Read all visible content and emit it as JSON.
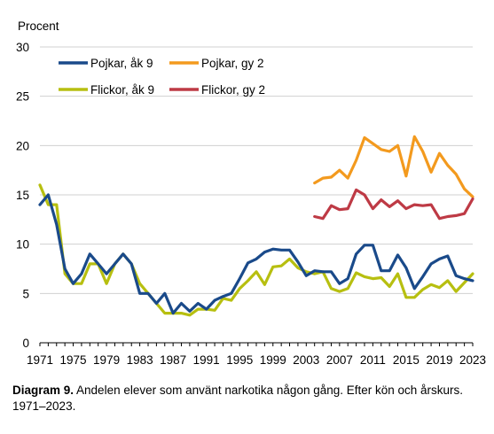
{
  "chart_data": {
    "type": "line",
    "ylabel": "Procent",
    "ylim": [
      0,
      30
    ],
    "yticks": [
      0,
      5,
      10,
      15,
      20,
      25,
      30
    ],
    "xlim": [
      1971,
      2023
    ],
    "xticks": [
      1971,
      1975,
      1979,
      1983,
      1987,
      1991,
      1995,
      1999,
      2003,
      2007,
      2011,
      2015,
      2019,
      2023
    ],
    "grid": true,
    "legend_position": "top-left, two columns",
    "series": [
      {
        "name": "Pojkar, åk 9",
        "color": "#1a4a8a",
        "x": [
          1971,
          1972,
          1973,
          1974,
          1975,
          1976,
          1977,
          1978,
          1979,
          1980,
          1981,
          1982,
          1983,
          1984,
          1985,
          1986,
          1987,
          1988,
          1989,
          1990,
          1991,
          1992,
          1993,
          1994,
          1995,
          1996,
          1997,
          1998,
          1999,
          2000,
          2001,
          2002,
          2003,
          2004,
          2005,
          2006,
          2007,
          2008,
          2009,
          2010,
          2011,
          2012,
          2013,
          2014,
          2015,
          2016,
          2017,
          2018,
          2019,
          2020,
          2021,
          2022,
          2023
        ],
        "values": [
          14,
          15,
          12,
          7.5,
          6,
          7,
          9,
          8,
          7,
          8,
          9,
          8,
          5,
          5,
          4,
          5,
          3,
          4,
          3.2,
          4,
          3.4,
          4.3,
          4.7,
          5,
          6.5,
          8.1,
          8.5,
          9.2,
          9.5,
          9.4,
          9.4,
          8.2,
          6.8,
          7.3,
          7.2,
          7.2,
          6,
          6.5,
          9,
          9.9,
          9.9,
          7.3,
          7.3,
          8.9,
          7.6,
          5.5,
          6.7,
          8,
          8.5,
          8.8,
          6.8,
          6.5,
          6.3
        ]
      },
      {
        "name": "Flickor, åk 9",
        "color": "#b7bf10",
        "x": [
          1971,
          1972,
          1973,
          1974,
          1975,
          1976,
          1977,
          1978,
          1979,
          1980,
          1981,
          1982,
          1983,
          1984,
          1985,
          1986,
          1987,
          1988,
          1989,
          1990,
          1991,
          1992,
          1993,
          1994,
          1995,
          1996,
          1997,
          1998,
          1999,
          2000,
          2001,
          2002,
          2003,
          2004,
          2005,
          2006,
          2007,
          2008,
          2009,
          2010,
          2011,
          2012,
          2013,
          2014,
          2015,
          2016,
          2017,
          2018,
          2019,
          2020,
          2021,
          2022,
          2023
        ],
        "values": [
          16,
          14,
          14,
          7,
          6,
          6,
          8,
          8,
          6,
          8,
          9,
          8,
          6,
          5,
          4,
          3,
          3,
          3,
          2.8,
          3.4,
          3.4,
          3.3,
          4.5,
          4.3,
          5.5,
          6.3,
          7.2,
          5.9,
          7.7,
          7.8,
          8.5,
          7.6,
          7.2,
          7,
          7.2,
          5.5,
          5.2,
          5.5,
          7.1,
          6.7,
          6.5,
          6.6,
          5.7,
          7,
          4.6,
          4.6,
          5.4,
          5.9,
          5.6,
          6.3,
          5.2,
          6.1,
          7
        ]
      },
      {
        "name": "Pojkar, gy 2",
        "color": "#f39a1e",
        "x": [
          2004,
          2005,
          2006,
          2007,
          2008,
          2009,
          2010,
          2011,
          2012,
          2013,
          2014,
          2015,
          2016,
          2017,
          2018,
          2019,
          2020,
          2021,
          2022,
          2023
        ],
        "values": [
          16.2,
          16.7,
          16.8,
          17.5,
          16.7,
          18.5,
          20.8,
          20.2,
          19.6,
          19.4,
          20,
          16.9,
          20.9,
          19.4,
          17.3,
          19.2,
          18,
          17.1,
          15.6,
          14.8
        ]
      },
      {
        "name": "Flickor, gy 2",
        "color": "#be3a45",
        "x": [
          2004,
          2005,
          2006,
          2007,
          2008,
          2009,
          2010,
          2011,
          2012,
          2013,
          2014,
          2015,
          2016,
          2017,
          2018,
          2019,
          2020,
          2021,
          2022,
          2023
        ],
        "values": [
          12.8,
          12.6,
          13.9,
          13.5,
          13.6,
          15.5,
          15,
          13.6,
          14.5,
          13.8,
          14.4,
          13.6,
          14,
          13.9,
          14,
          12.6,
          12.8,
          12.9,
          13.1,
          14.6
        ]
      }
    ]
  },
  "caption": {
    "label": "Diagram 9.",
    "text": " Andelen elever som använt narkotika någon gång. Efter kön och årskurs. 1971–2023."
  }
}
